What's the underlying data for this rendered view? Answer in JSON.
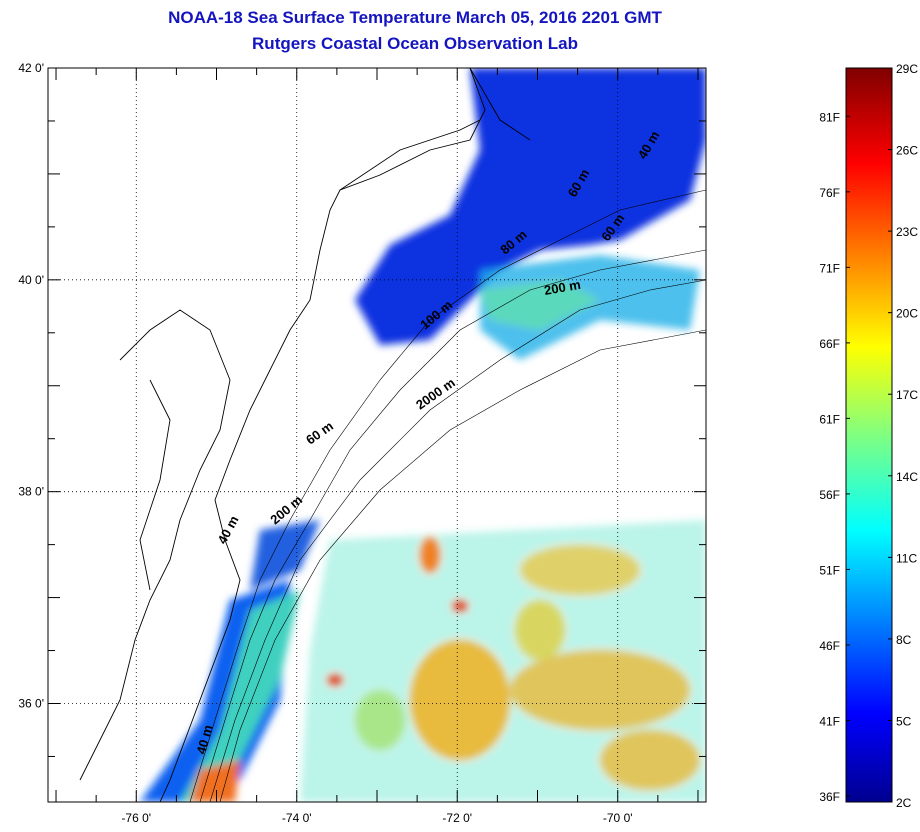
{
  "title": "NOAA-18 Sea Surface Temperature March 05, 2016 2201 GMT",
  "subtitle": "Rutgers Coastal Ocean Observation Lab",
  "map": {
    "lat_range": [
      35.07,
      42.0
    ],
    "lon_range": [
      -77.1,
      -68.9
    ],
    "lat_ticks": [
      {
        "v": 42,
        "label": "42 0'"
      },
      {
        "v": 40,
        "label": "40 0'"
      },
      {
        "v": 38,
        "label": "38 0'"
      },
      {
        "v": 36,
        "label": "36 0'"
      }
    ],
    "lon_ticks": [
      {
        "v": -76,
        "label": "-76 0'"
      },
      {
        "v": -74,
        "label": "-74 0'"
      },
      {
        "v": -72,
        "label": "-72 0'"
      },
      {
        "v": -70,
        "label": "-70 0'"
      }
    ],
    "contour_labels": [
      "40 m",
      "60 m",
      "80 m",
      "100 m",
      "200 m",
      "2000 m",
      "60 m",
      "200 m",
      "40 m",
      "40 m",
      "60 m"
    ]
  },
  "colorbar": {
    "range_c": [
      2,
      29
    ],
    "celsius_labels": [
      "29C",
      "26C",
      "23C",
      "20C",
      "17C",
      "14C",
      "11C",
      "8C",
      "5C",
      "2C"
    ],
    "fahrenheit_labels": [
      "81F",
      "76F",
      "71F",
      "66F",
      "61F",
      "56F",
      "51F",
      "46F",
      "41F",
      "36F"
    ]
  }
}
